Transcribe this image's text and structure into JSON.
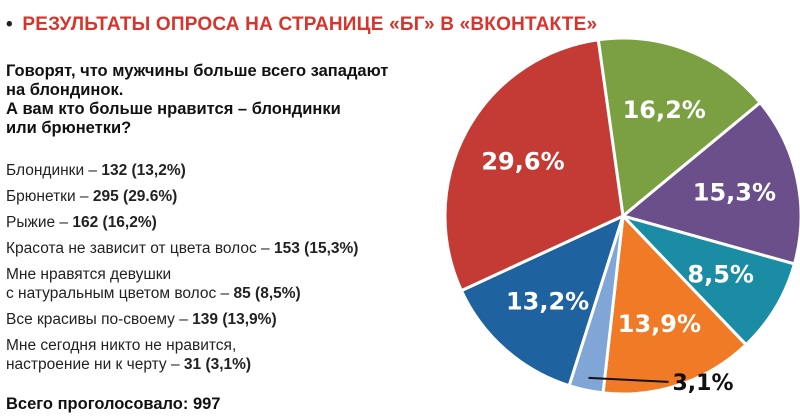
{
  "header": {
    "bullet": "•",
    "title": "РЕЗУЛЬТАТЫ ОПРОСА НА СТРАНИЦЕ «БГ» В «ВКОНТАКТЕ»"
  },
  "question": {
    "lines": [
      "Говорят, что мужчины больше всего западают",
      "на блондинок.",
      "А вам кто больше нравится – блондинки",
      "или брюнетки?"
    ]
  },
  "answers": [
    {
      "lines": [
        "Блондинки – "
      ],
      "count": "132 (13,2%)"
    },
    {
      "lines": [
        "Брюнетки – "
      ],
      "count": "295 (29.6%)"
    },
    {
      "lines": [
        "Рыжие – "
      ],
      "count": "162 (16,2%)"
    },
    {
      "lines": [
        "Красота не зависит от цвета волос – "
      ],
      "count": "153 (15,3%)"
    },
    {
      "lines": [
        "Мне нравятся девушки",
        "с натуральным цветом волос – "
      ],
      "count": "85 (8,5%)"
    },
    {
      "lines": [
        "Все красивы по-своему – "
      ],
      "count": "139 (13,9%)"
    },
    {
      "lines": [
        "Мне сегодня никто не нравится,",
        "настроение ни к черту – "
      ],
      "count": "31 (3,1%)"
    }
  ],
  "total": "Всего проголосовало: 997",
  "chart_data": {
    "type": "pie",
    "slices": [
      {
        "label": "16,2%",
        "value": 16.2,
        "color": "#7aa041"
      },
      {
        "label": "15,3%",
        "value": 15.3,
        "color": "#6b4f8b"
      },
      {
        "label": "8,5%",
        "value": 8.5,
        "color": "#1a8ca4"
      },
      {
        "label": "13,9%",
        "value": 13.9,
        "color": "#f07a26"
      },
      {
        "label": "3,1%",
        "value": 3.1,
        "color": "#7fa6d6"
      },
      {
        "label": "13,2%",
        "value": 13.2,
        "color": "#1f62a0"
      },
      {
        "label": "29,6%",
        "value": 29.6,
        "color": "#c43a35"
      }
    ]
  }
}
